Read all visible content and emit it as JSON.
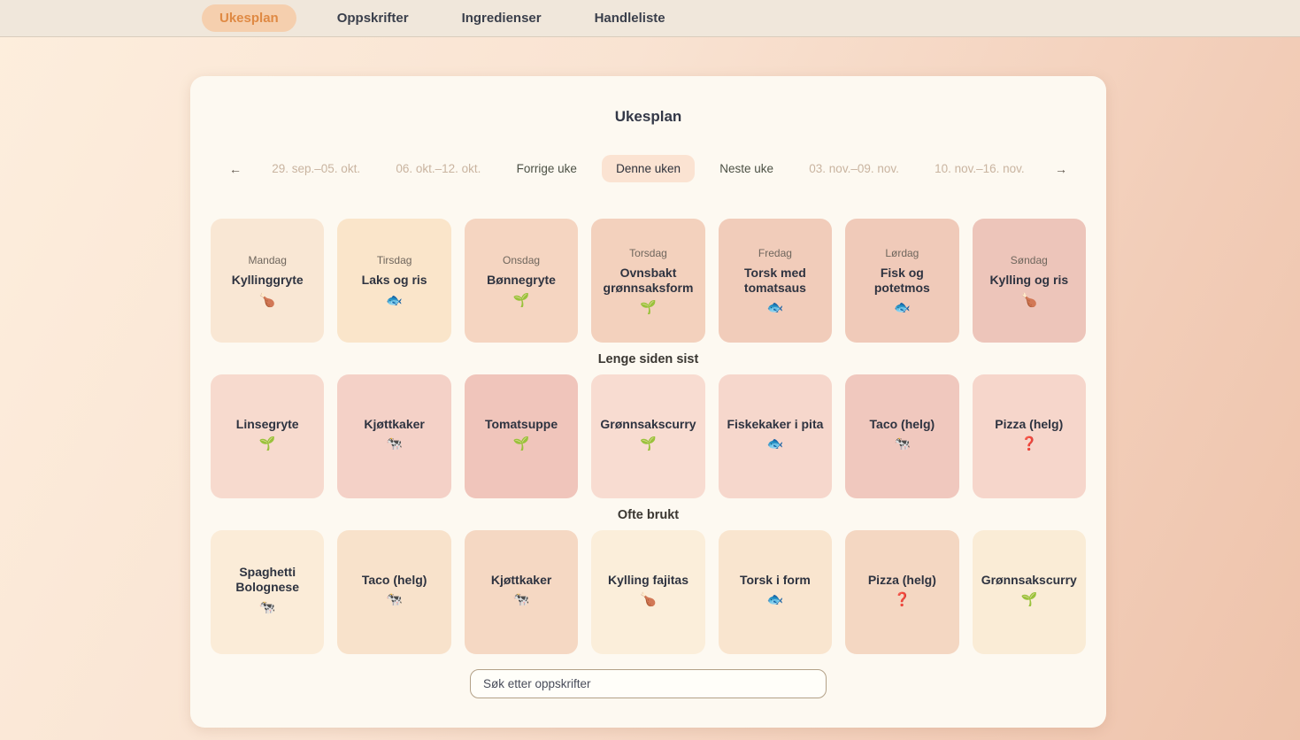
{
  "colors": {
    "accent_orange": "#df8943",
    "nav_pill": "#f5cfae",
    "current_week_pill": "#fbe3d2",
    "board_bg": "#fdf9f1"
  },
  "nav": {
    "tabs": [
      {
        "label": "Ukesplan",
        "active": true
      },
      {
        "label": "Oppskrifter",
        "active": false
      },
      {
        "label": "Ingredienser",
        "active": false
      },
      {
        "label": "Handleliste",
        "active": false
      }
    ]
  },
  "main": {
    "title": "Ukesplan",
    "week_nav": {
      "prev_arrow": "←",
      "next_arrow": "→",
      "items": [
        {
          "label": "29. sep.–05. okt.",
          "type": "date"
        },
        {
          "label": "06. okt.–12. okt.",
          "type": "date"
        },
        {
          "label": "Forrige uke",
          "type": "action"
        },
        {
          "label": "Denne uken",
          "type": "current"
        },
        {
          "label": "Neste uke",
          "type": "action"
        },
        {
          "label": "03. nov.–09. nov.",
          "type": "date"
        },
        {
          "label": "10. nov.–16. nov.",
          "type": "date"
        }
      ]
    },
    "week_days": [
      {
        "day": "Mandag",
        "meal": "Kyllinggryte",
        "icon": "🍗",
        "icon_name": "poultry-leg-icon",
        "bg": "#f9e7d4"
      },
      {
        "day": "Tirsdag",
        "meal": "Laks og ris",
        "icon": "🐟",
        "icon_name": "fish-icon",
        "bg": "#fae5ca"
      },
      {
        "day": "Onsdag",
        "meal": "Bønnegryte",
        "icon": "🌱",
        "icon_name": "seedling-icon",
        "bg": "#f5d5c1"
      },
      {
        "day": "Torsdag",
        "meal": "Ovnsbakt grønnsaksform",
        "icon": "🌱",
        "icon_name": "seedling-icon",
        "bg": "#f3d1bd"
      },
      {
        "day": "Fredag",
        "meal": "Torsk med tomatsaus",
        "icon": "🐟",
        "icon_name": "fish-icon",
        "bg": "#f1ccba"
      },
      {
        "day": "Lørdag",
        "meal": "Fisk og potetmos",
        "icon": "🐟",
        "icon_name": "fish-icon",
        "bg": "#f0cab9"
      },
      {
        "day": "Søndag",
        "meal": "Kylling og ris",
        "icon": "🍗",
        "icon_name": "poultry-leg-icon",
        "bg": "#edc5ba"
      }
    ],
    "sections": [
      {
        "heading": "Lenge siden sist",
        "cards": [
          {
            "meal": "Linsegryte",
            "icon": "🌱",
            "icon_name": "seedling-icon",
            "bg": "#f7dace"
          },
          {
            "meal": "Kjøttkaker",
            "icon": "🐄",
            "icon_name": "cow-icon",
            "bg": "#f4d1c7"
          },
          {
            "meal": "Tomatsuppe",
            "icon": "🌱",
            "icon_name": "seedling-icon",
            "bg": "#f0c5bb"
          },
          {
            "meal": "Grønnsakscurry",
            "icon": "🌱",
            "icon_name": "seedling-icon",
            "bg": "#f8dcd1"
          },
          {
            "meal": "Fiskekaker i pita",
            "icon": "🐟",
            "icon_name": "fish-icon",
            "bg": "#f6d7cc"
          },
          {
            "meal": "Taco (helg)",
            "icon": "🐄",
            "icon_name": "cow-icon",
            "bg": "#f0c8be"
          },
          {
            "meal": "Pizza (helg)",
            "icon": "❓",
            "icon_name": "question-mark-icon",
            "bg": "#f6d6cb"
          }
        ]
      },
      {
        "heading": "Ofte brukt",
        "cards": [
          {
            "meal": "Spaghetti Bolognese",
            "icon": "🐄",
            "icon_name": "cow-icon",
            "bg": "#fbecd8"
          },
          {
            "meal": "Taco (helg)",
            "icon": "🐄",
            "icon_name": "cow-icon",
            "bg": "#f8e2cb"
          },
          {
            "meal": "Kjøttkaker",
            "icon": "🐄",
            "icon_name": "cow-icon",
            "bg": "#f5d8c3"
          },
          {
            "meal": "Kylling fajitas",
            "icon": "🍗",
            "icon_name": "poultry-leg-icon",
            "bg": "#fbeeda"
          },
          {
            "meal": "Torsk i form",
            "icon": "🐟",
            "icon_name": "fish-icon",
            "bg": "#f9e5cf"
          },
          {
            "meal": "Pizza (helg)",
            "icon": "❓",
            "icon_name": "question-mark-icon",
            "bg": "#f4d7c2"
          },
          {
            "meal": "Grønnsakscurry",
            "icon": "🌱",
            "icon_name": "seedling-icon",
            "bg": "#faecd6"
          }
        ]
      }
    ],
    "search": {
      "placeholder": "Søk etter oppskrifter"
    }
  }
}
